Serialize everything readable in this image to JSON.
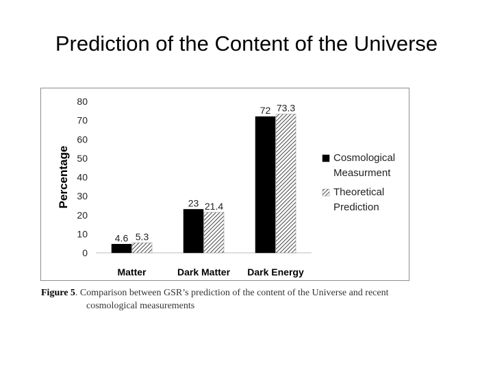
{
  "slide": {
    "title": "Prediction of the Content of the Universe"
  },
  "caption": {
    "label": "Figure 5",
    "text_line1": ". Comparison between GSR’s prediction of the content of the Universe and recent",
    "text_line2": "cosmological measurements"
  },
  "chart_data": {
    "type": "bar",
    "categories": [
      "Matter",
      "Dark Matter",
      "Dark Energy"
    ],
    "series": [
      {
        "name": "Cosmological Measurment",
        "values": [
          4.6,
          23,
          72
        ],
        "labels": [
          "4.6",
          "23",
          "72"
        ],
        "fill": "solid",
        "color": "#000000"
      },
      {
        "name": "Theoretical Prediction",
        "values": [
          5.3,
          21.4,
          73.3
        ],
        "labels": [
          "5.3",
          "21.4",
          "73.3"
        ],
        "fill": "hatched",
        "color": "#555555"
      }
    ],
    "ylabel": "Percentage",
    "xlabel": "",
    "ylim": [
      0,
      80
    ],
    "yticks": [
      0,
      10,
      20,
      30,
      40,
      50,
      60,
      70,
      80
    ],
    "legend_position": "right",
    "grid": false
  }
}
